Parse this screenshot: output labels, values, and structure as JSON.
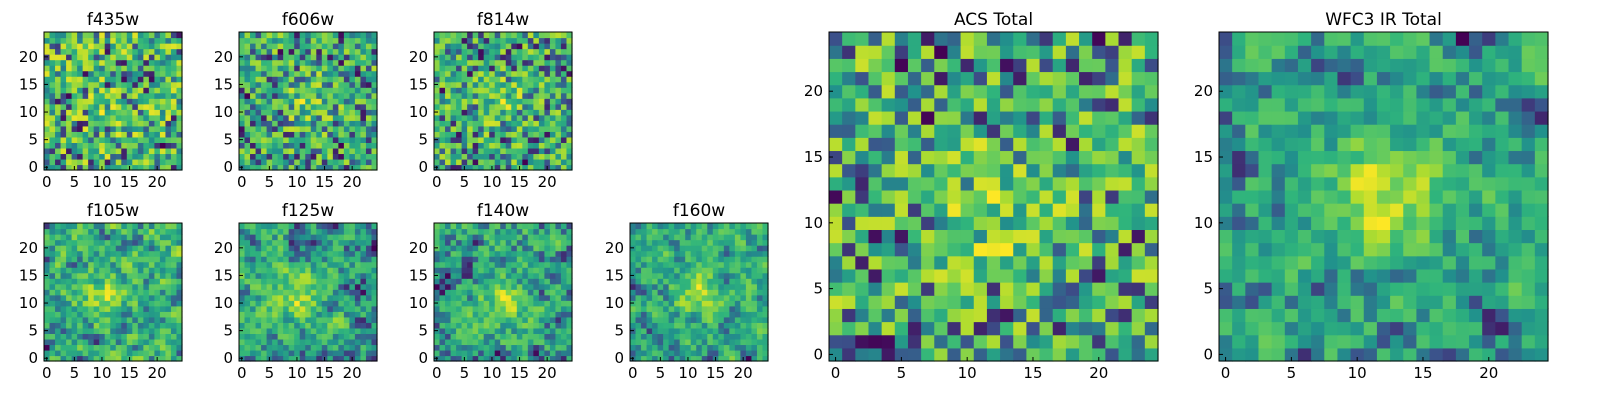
{
  "figure": {
    "colormap": [
      "#440154",
      "#3b528b",
      "#21918c",
      "#2fb47c",
      "#5ec962",
      "#addc30",
      "#fde725"
    ],
    "background": "#ffffff"
  },
  "chart_data": [
    {
      "type": "heatmap",
      "title": "f435w",
      "colormap": "viridis",
      "n": 25,
      "xlim": [
        0,
        24
      ],
      "ylim": [
        0,
        24
      ],
      "xticks": [
        "0",
        "5",
        "10",
        "15",
        "20"
      ],
      "yticks": [
        "0",
        "5",
        "10",
        "15",
        "20"
      ],
      "peak": [
        12,
        10
      ],
      "peak_strength": 0.1,
      "seed": 11,
      "smooth": 0
    },
    {
      "type": "heatmap",
      "title": "f606w",
      "colormap": "viridis",
      "n": 25,
      "xlim": [
        0,
        24
      ],
      "ylim": [
        0,
        24
      ],
      "xticks": [
        "0",
        "5",
        "10",
        "15",
        "20"
      ],
      "yticks": [
        "0",
        "5",
        "10",
        "15",
        "20"
      ],
      "peak": [
        12,
        12
      ],
      "peak_strength": 0.3,
      "seed": 23,
      "smooth": 0
    },
    {
      "type": "heatmap",
      "title": "f814w",
      "colormap": "viridis",
      "n": 25,
      "xlim": [
        0,
        24
      ],
      "ylim": [
        0,
        24
      ],
      "xticks": [
        "0",
        "5",
        "10",
        "15",
        "20"
      ],
      "yticks": [
        "0",
        "5",
        "10",
        "15",
        "20"
      ],
      "peak": [
        12,
        12
      ],
      "peak_strength": 0.25,
      "seed": 37,
      "smooth": 0
    },
    {
      "type": "heatmap",
      "title": "f105w",
      "colormap": "viridis",
      "n": 25,
      "xlim": [
        0,
        24
      ],
      "ylim": [
        0,
        24
      ],
      "xticks": [
        "0",
        "5",
        "10",
        "15",
        "20"
      ],
      "yticks": [
        "0",
        "5",
        "10",
        "15",
        "20"
      ],
      "peak": [
        11,
        12
      ],
      "peak_strength": 0.3,
      "seed": 41,
      "smooth": 1
    },
    {
      "type": "heatmap",
      "title": "f125w",
      "colormap": "viridis",
      "n": 25,
      "xlim": [
        0,
        24
      ],
      "ylim": [
        0,
        24
      ],
      "xticks": [
        "0",
        "5",
        "10",
        "15",
        "20"
      ],
      "yticks": [
        "0",
        "5",
        "10",
        "15",
        "20"
      ],
      "peak": [
        10,
        11
      ],
      "peak_strength": 0.35,
      "seed": 53,
      "smooth": 1
    },
    {
      "type": "heatmap",
      "title": "f140w",
      "colormap": "viridis",
      "n": 25,
      "xlim": [
        0,
        24
      ],
      "ylim": [
        0,
        24
      ],
      "xticks": [
        "0",
        "5",
        "10",
        "15",
        "20"
      ],
      "yticks": [
        "0",
        "5",
        "10",
        "15",
        "20"
      ],
      "peak": [
        12,
        10
      ],
      "peak_strength": 0.35,
      "seed": 67,
      "smooth": 1
    },
    {
      "type": "heatmap",
      "title": "f160w",
      "colormap": "viridis",
      "n": 25,
      "xlim": [
        0,
        24
      ],
      "ylim": [
        0,
        24
      ],
      "xticks": [
        "0",
        "5",
        "10",
        "15",
        "20"
      ],
      "yticks": [
        "0",
        "5",
        "10",
        "15",
        "20"
      ],
      "peak": [
        12,
        12
      ],
      "peak_strength": 0.4,
      "seed": 79,
      "smooth": 1
    },
    {
      "type": "heatmap",
      "title": "ACS Total",
      "colormap": "viridis",
      "n": 25,
      "xlim": [
        0,
        24
      ],
      "ylim": [
        0,
        24
      ],
      "xticks": [
        "0",
        "5",
        "10",
        "15",
        "20"
      ],
      "yticks": [
        "0",
        "5",
        "10",
        "15",
        "20"
      ],
      "peak": [
        12,
        11
      ],
      "peak_strength": 0.25,
      "seed": 97,
      "smooth": 0
    },
    {
      "type": "heatmap",
      "title": "WFC3 IR Total",
      "colormap": "viridis",
      "n": 25,
      "xlim": [
        0,
        24
      ],
      "ylim": [
        0,
        24
      ],
      "xticks": [
        "0",
        "5",
        "10",
        "15",
        "20"
      ],
      "yticks": [
        "0",
        "5",
        "10",
        "15",
        "20"
      ],
      "peak": [
        12,
        12
      ],
      "peak_strength": 0.5,
      "seed": 113,
      "smooth": 1
    }
  ]
}
